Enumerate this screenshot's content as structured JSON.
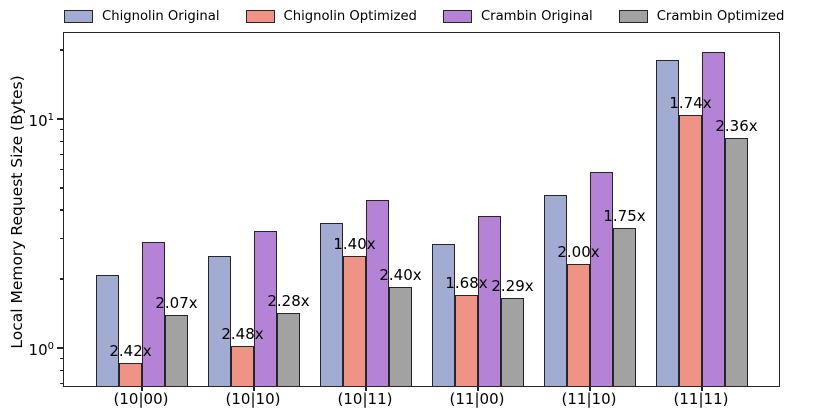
{
  "chart_data": {
    "type": "bar",
    "scale": "log",
    "title": "",
    "xlabel": "",
    "ylabel": "Local Memory Request Size (Bytes)",
    "ylim": [
      0.68,
      23.8
    ],
    "grid": false,
    "legend_position": "top",
    "categories": [
      "(10|00)",
      "(10|10)",
      "(10|11)",
      "(11|00)",
      "(11|10)",
      "(11|11)"
    ],
    "series": [
      {
        "name": "Chignolin Original",
        "color": "#a2abd2",
        "values": [
          2.08,
          2.52,
          3.52,
          2.85,
          4.66,
          18.1
        ]
      },
      {
        "name": "Chignolin Optimized",
        "color": "#ee9386",
        "values": [
          0.86,
          1.02,
          2.51,
          1.7,
          2.33,
          10.4
        ]
      },
      {
        "name": "Crambin Original",
        "color": "#b583d6",
        "values": [
          2.9,
          3.24,
          4.43,
          3.77,
          5.87,
          19.6
        ]
      },
      {
        "name": "Crambin Optimized",
        "color": "#a2a2a2",
        "values": [
          1.4,
          1.42,
          1.85,
          1.65,
          3.35,
          8.3
        ]
      }
    ],
    "annotations": [
      {
        "text": "2.42x",
        "attached_series": "Chignolin Optimized",
        "category": "(10|00)"
      },
      {
        "text": "2.48x",
        "attached_series": "Chignolin Optimized",
        "category": "(10|10)"
      },
      {
        "text": "1.40x",
        "attached_series": "Chignolin Optimized",
        "category": "(10|11)"
      },
      {
        "text": "1.68x",
        "attached_series": "Chignolin Optimized",
        "category": "(11|00)"
      },
      {
        "text": "2.00x",
        "attached_series": "Chignolin Optimized",
        "category": "(11|10)"
      },
      {
        "text": "1.74x",
        "attached_series": "Chignolin Optimized",
        "category": "(11|11)"
      },
      {
        "text": "2.07x",
        "attached_series": "Crambin Optimized",
        "category": "(10|00)"
      },
      {
        "text": "2.28x",
        "attached_series": "Crambin Optimized",
        "category": "(10|10)"
      },
      {
        "text": "2.40x",
        "attached_series": "Crambin Optimized",
        "category": "(10|11)"
      },
      {
        "text": "2.29x",
        "attached_series": "Crambin Optimized",
        "category": "(11|00)"
      },
      {
        "text": "1.75x",
        "attached_series": "Crambin Optimized",
        "category": "(11|10)"
      },
      {
        "text": "2.36x",
        "attached_series": "Crambin Optimized",
        "category": "(11|11)"
      }
    ],
    "yticks_major": [
      {
        "base": "10",
        "exp": "0",
        "value": 1
      },
      {
        "base": "10",
        "exp": "1",
        "value": 10
      }
    ],
    "yticks_minor_values": [
      0.7,
      0.8,
      0.9,
      2,
      3,
      4,
      5,
      6,
      7,
      8,
      9,
      20
    ],
    "axis_color": "#262626"
  }
}
